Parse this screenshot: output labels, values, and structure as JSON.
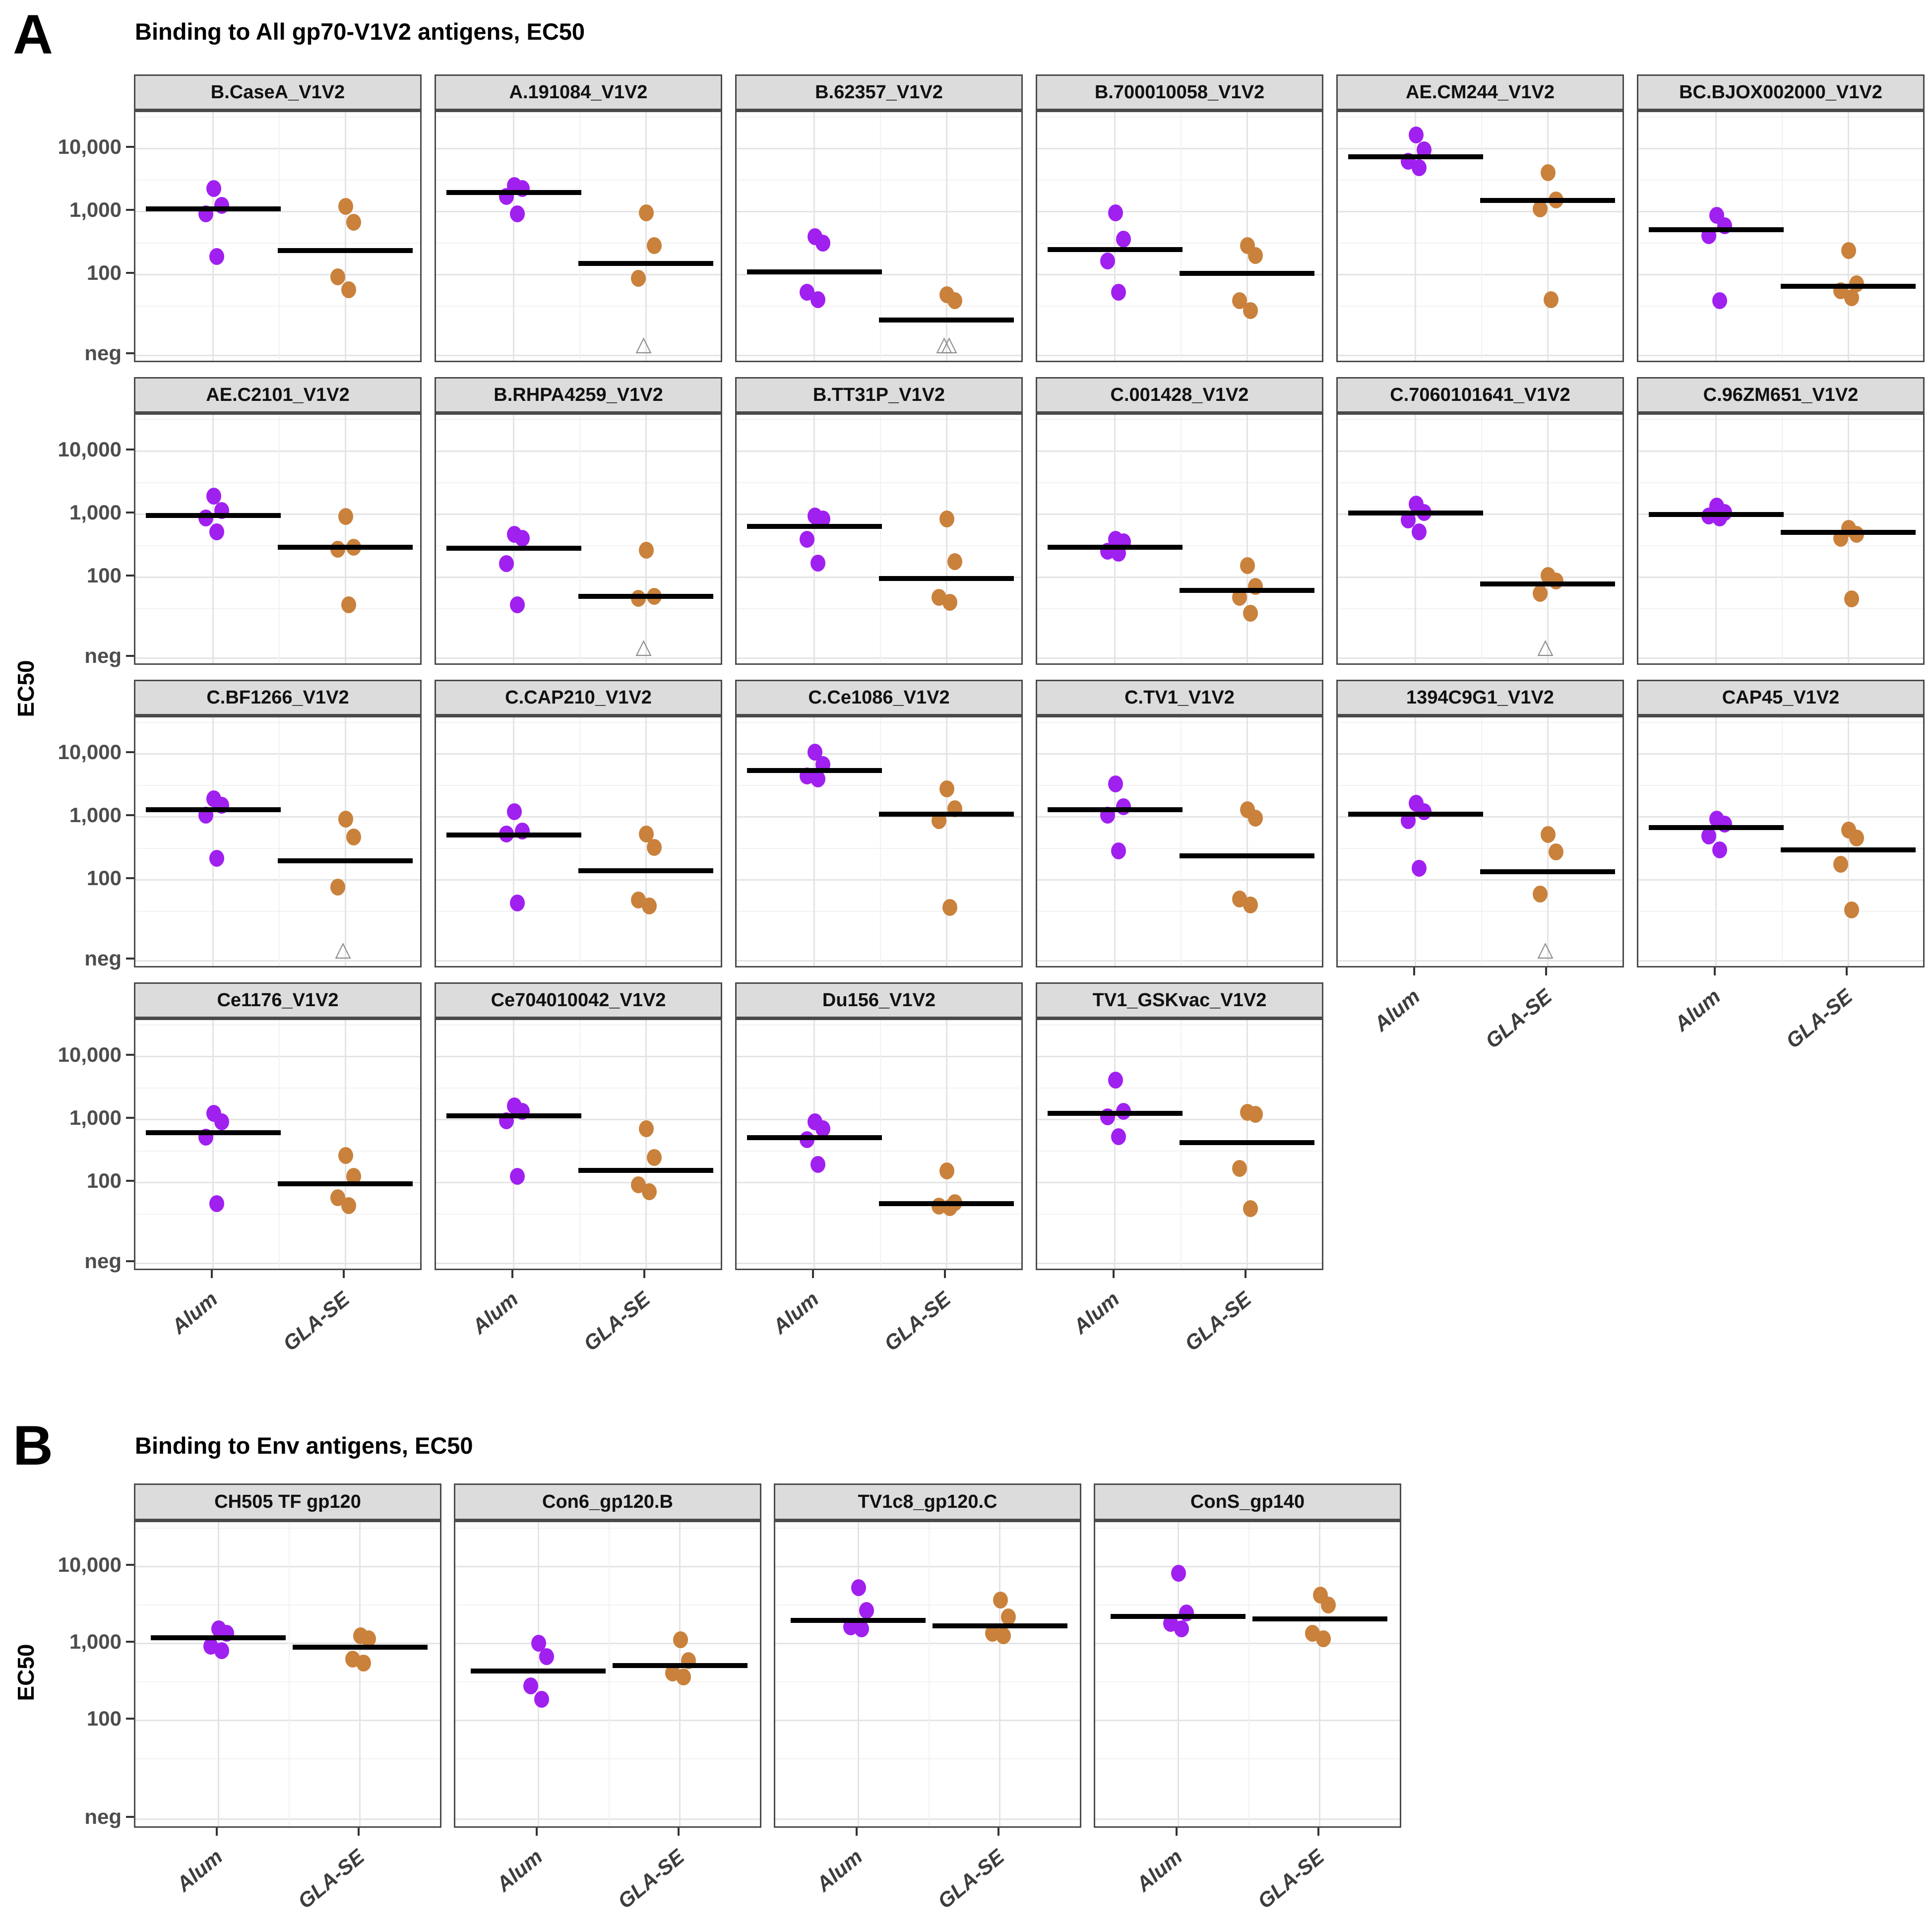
{
  "axis": {
    "y_tick_labels": [
      "10,000",
      "1,000",
      "100",
      "neg"
    ],
    "y_tick_values": [
      10000,
      1000,
      100
    ],
    "groups": [
      "Alum",
      "GLA-SE"
    ]
  },
  "colors": {
    "alum": "#a020f0",
    "gla_se": "#c9813b",
    "median_line": "#000000",
    "strip_bg": "#dcdcdc",
    "plot_border": "#4a4a4a",
    "grid_major": "#e4e4e4",
    "grid_minor": "#f2f2f2",
    "axis_text": "#4d4d4d"
  },
  "chart_data": {
    "type": "scatter",
    "yscale": "log10",
    "ylim_note": "log axis with ticks 100, 1,000, 10,000 and a 'neg' category line near the bottom",
    "legend_position": "none",
    "grid": true,
    "groups": [
      "Alum",
      "GLA-SE"
    ],
    "group_colors": [
      "#a020f0",
      "#c9813b"
    ],
    "panels": [
      {
        "id": "A",
        "title": "Binding to All gp70-V1V2 antigens, EC50",
        "ylabel": "EC50",
        "ncols": 6,
        "facets": [
          {
            "title": "B.CaseA_V1V2",
            "alum": {
              "values": [
                2400,
                1300,
                950,
                200
              ],
              "median_line": 1100,
              "neg_points": 0
            },
            "gla_se": {
              "values": [
                1250,
                700,
                95,
                60
              ],
              "median_line": 240,
              "neg_points": 0
            }
          },
          {
            "title": "A.191084_V1V2",
            "alum": {
              "values": [
                2700,
                2400,
                1800,
                950
              ],
              "median_line": 2000,
              "neg_points": 0
            },
            "gla_se": {
              "values": [
                1000,
                300,
                90
              ],
              "median_line": 150,
              "neg_points": 1
            }
          },
          {
            "title": "B.62357_V1V2",
            "alum": {
              "values": [
                420,
                330,
                55,
                42
              ],
              "median_line": 110,
              "neg_points": 0
            },
            "gla_se": {
              "values": [
                50,
                40
              ],
              "median_line": 19,
              "neg_points": 2
            }
          },
          {
            "title": "B.700010058_V1V2",
            "alum": {
              "values": [
                1000,
                380,
                170,
                55
              ],
              "median_line": 250,
              "neg_points": 0
            },
            "gla_se": {
              "values": [
                300,
                210,
                40,
                28
              ],
              "median_line": 105,
              "neg_points": 0
            }
          },
          {
            "title": "AE.CM244_V1V2",
            "alum": {
              "values": [
                17000,
                10000,
                6500,
                5200
              ],
              "median_line": 7500,
              "neg_points": 0
            },
            "gla_se": {
              "values": [
                4300,
                1600,
                1150,
                42
              ],
              "median_line": 1500,
              "neg_points": 0
            }
          },
          {
            "title": "BC.BJOX002000_V1V2",
            "alum": {
              "values": [
                900,
                620,
                430,
                40
              ],
              "median_line": 520,
              "neg_points": 0
            },
            "gla_se": {
              "values": [
                250,
                75,
                58,
                45
              ],
              "median_line": 65,
              "neg_points": 0
            }
          },
          {
            "title": "AE.C2101_V1V2",
            "alum": {
              "values": [
                2000,
                1200,
                900,
                550
              ],
              "median_line": 950,
              "neg_points": 0
            },
            "gla_se": {
              "values": [
                950,
                310,
                290,
                38
              ],
              "median_line": 300,
              "neg_points": 0
            }
          },
          {
            "title": "B.RHPA4259_V1V2",
            "alum": {
              "values": [
                500,
                430,
                170,
                38
              ],
              "median_line": 290,
              "neg_points": 0
            },
            "gla_se": {
              "values": [
                280,
                52,
                48
              ],
              "median_line": 50,
              "neg_points": 1
            }
          },
          {
            "title": "B.TT31P_V1V2",
            "alum": {
              "values": [
                980,
                880,
                420,
                175
              ],
              "median_line": 640,
              "neg_points": 0
            },
            "gla_se": {
              "values": [
                870,
                185,
                50,
                42
              ],
              "median_line": 95,
              "neg_points": 0
            }
          },
          {
            "title": "C.001428_V1V2",
            "alum": {
              "values": [
                420,
                380,
                270,
                250
              ],
              "median_line": 300,
              "neg_points": 0
            },
            "gla_se": {
              "values": [
                160,
                75,
                50,
                28
              ],
              "median_line": 62,
              "neg_points": 0
            }
          },
          {
            "title": "C.7060101641_V1V2",
            "alum": {
              "values": [
                1500,
                1100,
                850,
                550
              ],
              "median_line": 1050,
              "neg_points": 0
            },
            "gla_se": {
              "values": [
                110,
                90,
                58
              ],
              "median_line": 78,
              "neg_points": 1
            }
          },
          {
            "title": "C.96ZM651_V1V2",
            "alum": {
              "values": [
                1400,
                1100,
                980,
                900
              ],
              "median_line": 1000,
              "neg_points": 0
            },
            "gla_se": {
              "values": [
                620,
                500,
                430,
                47
              ],
              "median_line": 520,
              "neg_points": 0
            }
          },
          {
            "title": "C.BF1266_V1V2",
            "alum": {
              "values": [
                2000,
                1600,
                1100,
                230
              ],
              "median_line": 1300,
              "neg_points": 0
            },
            "gla_se": {
              "values": [
                950,
                500,
                80
              ],
              "median_line": 200,
              "neg_points": 1
            }
          },
          {
            "title": "C.CAP210_V1V2",
            "alum": {
              "values": [
                1250,
                620,
                560,
                45
              ],
              "median_line": 520,
              "neg_points": 0
            },
            "gla_se": {
              "values": [
                560,
                340,
                50,
                40
              ],
              "median_line": 140,
              "neg_points": 0
            }
          },
          {
            "title": "C.Ce1086_V1V2",
            "alum": {
              "values": [
                11000,
                7000,
                4600,
                4200
              ],
              "median_line": 5500,
              "neg_points": 0
            },
            "gla_se": {
              "values": [
                2900,
                1400,
                900,
                38
              ],
              "median_line": 1100,
              "neg_points": 0
            }
          },
          {
            "title": "C.TV1_V1V2",
            "alum": {
              "values": [
                3500,
                1500,
                1100,
                300
              ],
              "median_line": 1300,
              "neg_points": 0
            },
            "gla_se": {
              "values": [
                1350,
                1000,
                52,
                42
              ],
              "median_line": 240,
              "neg_points": 0
            }
          },
          {
            "title": "1394C9G1_V1V2",
            "alum": {
              "values": [
                1700,
                1250,
                900,
                160
              ],
              "median_line": 1100,
              "neg_points": 0
            },
            "gla_se": {
              "values": [
                550,
                290,
                62
              ],
              "median_line": 135,
              "neg_points": 1
            }
          },
          {
            "title": "CAP45_V1V2",
            "alum": {
              "values": [
                950,
                800,
                520,
                310
              ],
              "median_line": 680,
              "neg_points": 0
            },
            "gla_se": {
              "values": [
                640,
                480,
                185,
                35
              ],
              "median_line": 300,
              "neg_points": 0
            }
          },
          {
            "title": "Ce1176_V1V2",
            "alum": {
              "values": [
                1300,
                950,
                550,
                48
              ],
              "median_line": 620,
              "neg_points": 0
            },
            "gla_se": {
              "values": [
                280,
                130,
                60,
                45
              ],
              "median_line": 95,
              "neg_points": 0
            }
          },
          {
            "title": "Ce704010042_V1V2",
            "alum": {
              "values": [
                1700,
                1400,
                1000,
                130
              ],
              "median_line": 1150,
              "neg_points": 0
            },
            "gla_se": {
              "values": [
                750,
                260,
                95,
                75
              ],
              "median_line": 155,
              "neg_points": 0
            }
          },
          {
            "title": "Du156_V1V2",
            "alum": {
              "values": [
                950,
                750,
                500,
                200
              ],
              "median_line": 520,
              "neg_points": 0
            },
            "gla_se": {
              "values": [
                160,
                50,
                44,
                42
              ],
              "median_line": 46,
              "neg_points": 0
            }
          },
          {
            "title": "TV1_GSKvac_V1V2",
            "alum": {
              "values": [
                4400,
                1400,
                1150,
                560
              ],
              "median_line": 1250,
              "neg_points": 0
            },
            "gla_se": {
              "values": [
                1350,
                1250,
                175,
                40
              ],
              "median_line": 430,
              "neg_points": 0
            }
          }
        ]
      },
      {
        "id": "B",
        "title": "Binding to Env antigens, EC50",
        "ylabel": "EC50",
        "ncols": 4,
        "facets": [
          {
            "title": "CH505 TF gp120",
            "alum": {
              "values": [
                1600,
                1400,
                950,
                830
              ],
              "median_line": 1200,
              "neg_points": 0
            },
            "gla_se": {
              "values": [
                1300,
                1200,
                650,
                580
              ],
              "median_line": 900,
              "neg_points": 0
            }
          },
          {
            "title": "Con6_gp120.B",
            "alum": {
              "values": [
                1050,
                700,
                290,
                195
              ],
              "median_line": 440,
              "neg_points": 0
            },
            "gla_se": {
              "values": [
                1150,
                620,
                430,
                380
              ],
              "median_line": 520,
              "neg_points": 0
            }
          },
          {
            "title": "TV1c8_gp120.C",
            "alum": {
              "values": [
                5500,
                2800,
                1700,
                1600
              ],
              "median_line": 2000,
              "neg_points": 0
            },
            "gla_se": {
              "values": [
                3800,
                2300,
                1400,
                1300
              ],
              "median_line": 1700,
              "neg_points": 0
            }
          },
          {
            "title": "ConS_gp140",
            "alum": {
              "values": [
                8500,
                2600,
                1900,
                1600
              ],
              "median_line": 2250,
              "neg_points": 0
            },
            "gla_se": {
              "values": [
                4400,
                3300,
                1400,
                1200
              ],
              "median_line": 2100,
              "neg_points": 0
            }
          }
        ]
      }
    ]
  }
}
